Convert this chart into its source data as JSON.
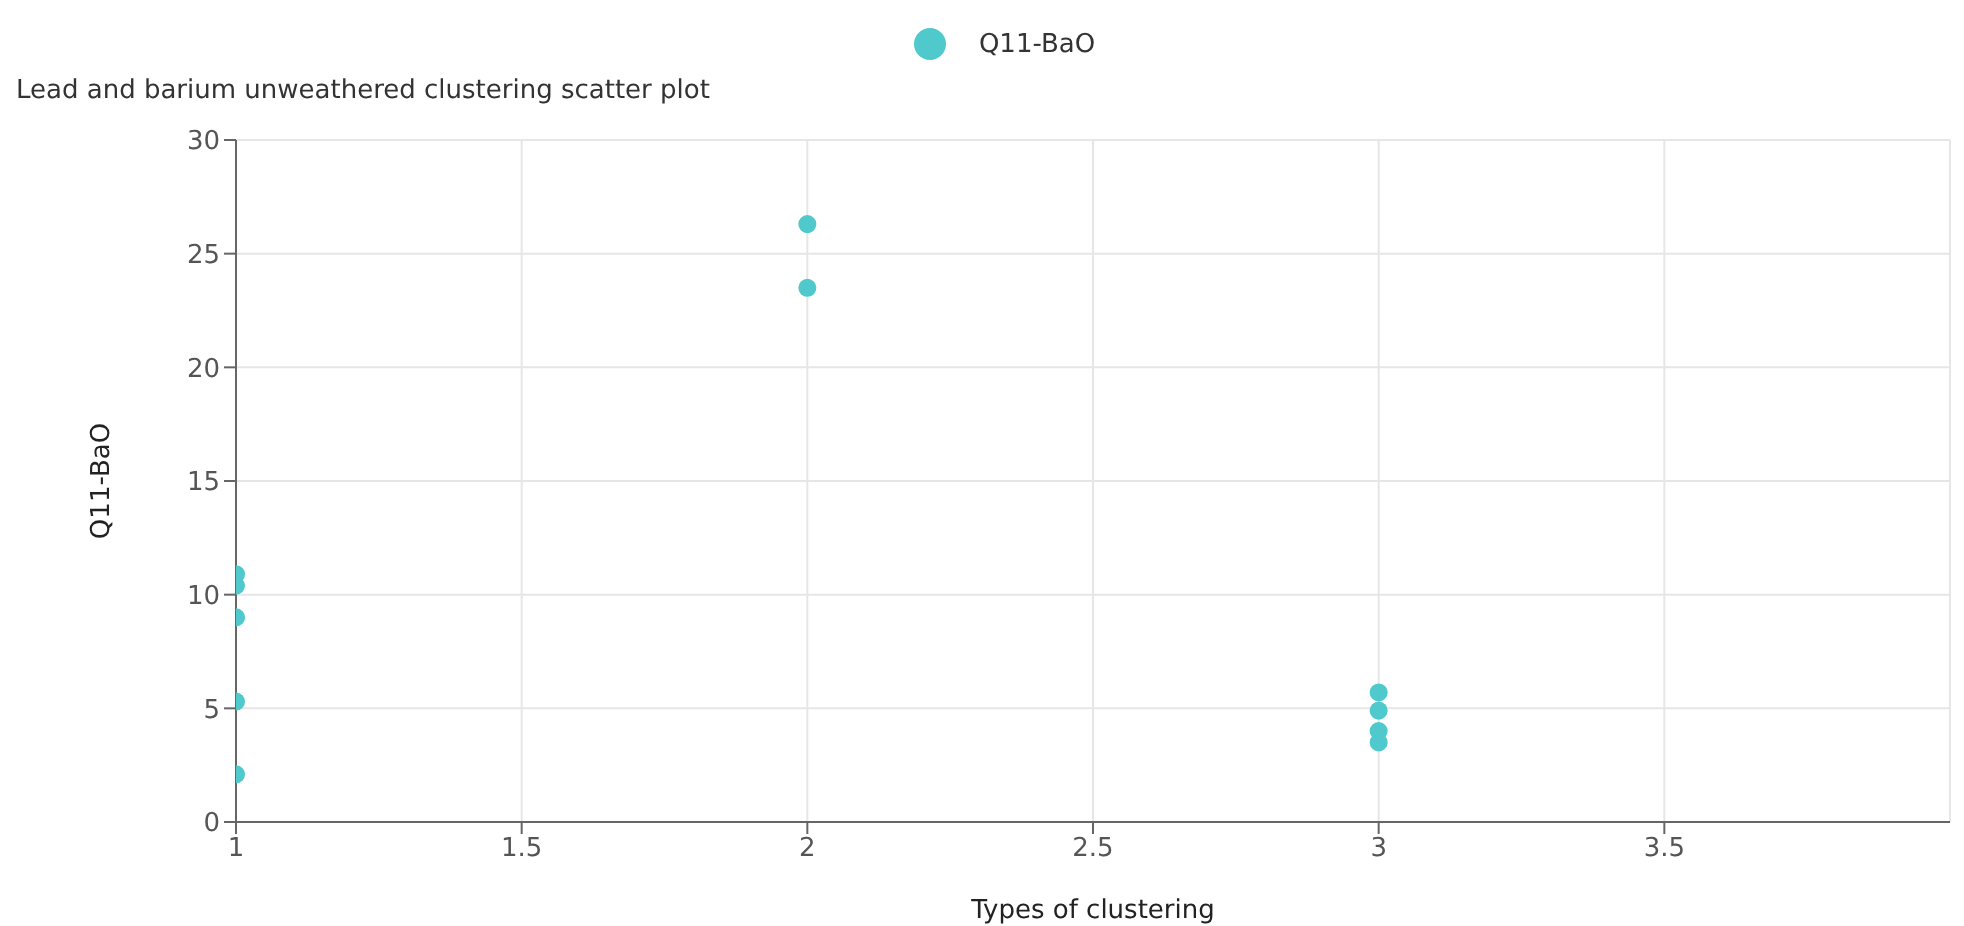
{
  "chart_data": {
    "type": "scatter",
    "title": "Lead and barium unweathered clustering scatter plot",
    "xlabel": "Types of clustering",
    "ylabel": "Q11-BaO",
    "series": [
      {
        "name": "Q11-BaO",
        "color": "#4fc9cc",
        "x": [
          1,
          1,
          1,
          1,
          1,
          2,
          2,
          3,
          3,
          3,
          3
        ],
        "values": [
          10.9,
          10.4,
          9.0,
          5.3,
          2.1,
          26.3,
          23.5,
          5.7,
          4.9,
          4.0,
          3.5
        ]
      }
    ],
    "xlim": [
      1,
      4
    ],
    "xticks": [
      1,
      1.5,
      2,
      2.5,
      3,
      3.5
    ],
    "ylim": [
      0,
      30
    ],
    "yticks": [
      0,
      5,
      10,
      15,
      20,
      25,
      30
    ],
    "grid": true,
    "legend": "top",
    "marker": "circle"
  }
}
